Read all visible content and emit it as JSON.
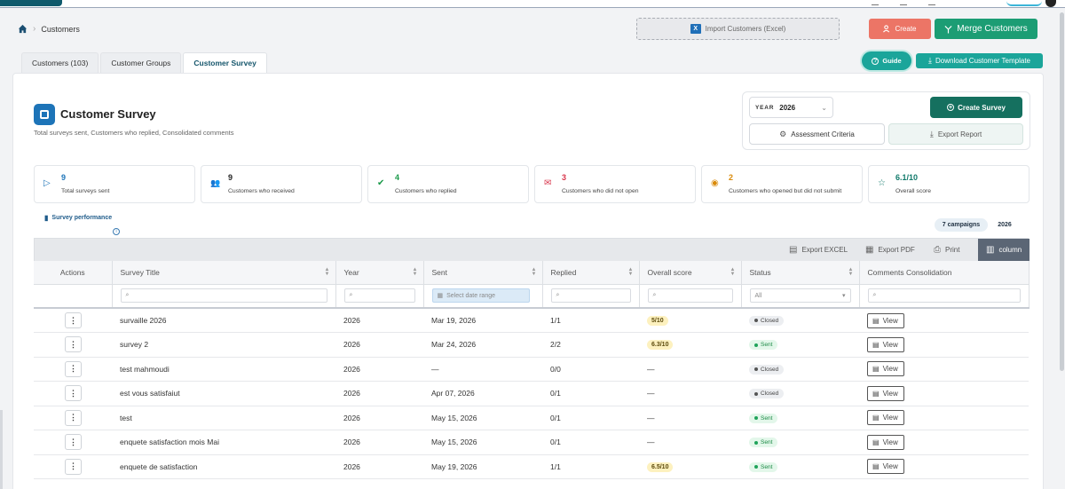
{
  "breadcrumb": {
    "current": "Customers"
  },
  "header": {
    "import_label": "Import Customers (Excel)",
    "create_label": "Create",
    "merge_label": "Merge Customers",
    "guide_label": "Guide",
    "download_label": "Download Customer Template"
  },
  "tabs": [
    {
      "label": "Customers (103)"
    },
    {
      "label": "Customer Groups"
    },
    {
      "label": "Customer Survey"
    }
  ],
  "page": {
    "title": "Customer Survey",
    "subtitle": "Total surveys sent, Customers who replied, Consolidated comments"
  },
  "controls": {
    "year_label": "YEAR",
    "year_value": "2026",
    "create_survey_label": "Create Survey",
    "assessment_label": "Assessment Criteria",
    "export_report_label": "Export Report"
  },
  "stats": [
    {
      "value": "9",
      "label": "Total surveys sent",
      "color": "#1d74b8",
      "icon": "play-icon"
    },
    {
      "value": "9",
      "label": "Customers who received",
      "color": "#222222",
      "icon": "users-icon"
    },
    {
      "value": "4",
      "label": "Customers who replied",
      "color": "#1b9a4a",
      "icon": "check-circle-icon"
    },
    {
      "value": "3",
      "label": "Customers who did not open",
      "color": "#d8344a",
      "icon": "mail-icon"
    },
    {
      "value": "2",
      "label": "Customers who opened but did not submit",
      "color": "#d98a0a",
      "icon": "eye-icon"
    },
    {
      "value": "6.1/10",
      "label": "Overall score",
      "color": "#117a6b",
      "icon": "star-icon"
    }
  ],
  "performance": {
    "title": "Survey performance",
    "campaigns": "7 campaigns",
    "year": "2026"
  },
  "toolbar": {
    "export_excel": "Export EXCEL",
    "export_pdf": "Export PDF",
    "print": "Print",
    "column": "column"
  },
  "table": {
    "columns": [
      "Actions",
      "Survey Title",
      "Year",
      "Sent",
      "Replied",
      "Overall score",
      "Status",
      "Comments Consolidation"
    ],
    "date_placeholder": "Select date range",
    "status_filter": "All",
    "view_label": "View",
    "rows": [
      {
        "title": "survaille 2026",
        "year": "2026",
        "sent": "Mar 19, 2026",
        "replied": "1/1",
        "score": "5/10",
        "status": "Closed"
      },
      {
        "title": "survey 2",
        "year": "2026",
        "sent": "Mar 24, 2026",
        "replied": "2/2",
        "score": "6.3/10",
        "status": "Sent"
      },
      {
        "title": "test mahmoudi",
        "year": "2026",
        "sent": "—",
        "replied": "0/0",
        "score": "—",
        "status": "Closed"
      },
      {
        "title": "est vous satisfaiut",
        "year": "2026",
        "sent": "Apr 07, 2026",
        "replied": "0/1",
        "score": "—",
        "status": "Closed"
      },
      {
        "title": "test",
        "year": "2026",
        "sent": "May 15, 2026",
        "replied": "0/1",
        "score": "—",
        "status": "Sent"
      },
      {
        "title": "enquete satisfaction mois Mai",
        "year": "2026",
        "sent": "May 15, 2026",
        "replied": "0/1",
        "score": "—",
        "status": "Sent"
      },
      {
        "title": "enquete de satisfaction",
        "year": "2026",
        "sent": "May 19, 2026",
        "replied": "1/1",
        "score": "6.5/10",
        "status": "Sent"
      }
    ]
  }
}
